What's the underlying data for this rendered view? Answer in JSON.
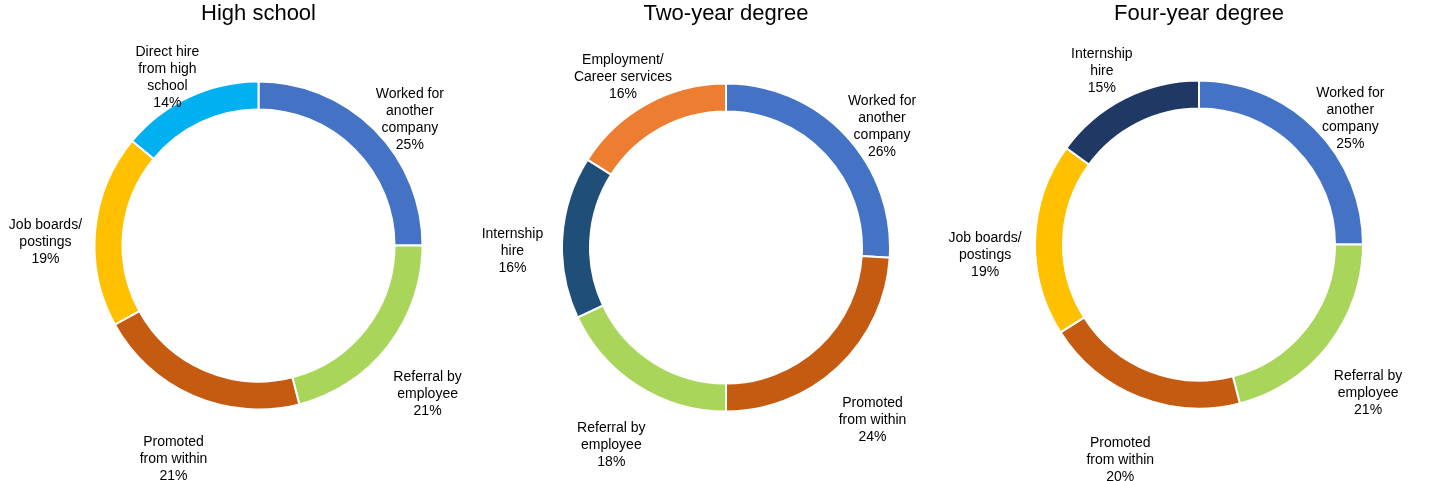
{
  "chart_data": [
    {
      "type": "donut",
      "title": "High school",
      "categories": [
        "Worked for\nanother\ncompany",
        "Referral by\nemployee",
        "Promoted\nfrom within",
        "Job boards/\npostings",
        "Direct hire\nfrom high\nschool"
      ],
      "values": [
        25,
        21,
        21,
        19,
        14
      ],
      "value_labels": [
        "25%",
        "21%",
        "21%",
        "19%",
        "14%"
      ],
      "colors": [
        "#4472c4",
        "#a9d65a",
        "#c55a11",
        "#ffc000",
        "#00b0f0"
      ]
    },
    {
      "type": "donut",
      "title": "Two-year degree",
      "categories": [
        "Worked for\nanother\ncompany",
        "Promoted\nfrom within",
        "Referral by\nemployee",
        "Internship\nhire",
        "Employment/\nCareer services"
      ],
      "values": [
        26,
        24,
        18,
        16,
        16
      ],
      "value_labels": [
        "26%",
        "24%",
        "18%",
        "16%",
        "16%"
      ],
      "colors": [
        "#4472c4",
        "#c55a11",
        "#a9d65a",
        "#1f4e79",
        "#ed7d31"
      ]
    },
    {
      "type": "donut",
      "title": "Four-year degree",
      "categories": [
        "Worked for\nanother\ncompany",
        "Referral by\nemployee",
        "Promoted\nfrom within",
        "Job boards/\npostings",
        "Internship\nhire"
      ],
      "values": [
        25,
        21,
        20,
        19,
        15
      ],
      "value_labels": [
        "25%",
        "21%",
        "20%",
        "19%",
        "15%"
      ],
      "colors": [
        "#4472c4",
        "#a9d65a",
        "#c55a11",
        "#ffc000",
        "#1f3864"
      ]
    }
  ]
}
